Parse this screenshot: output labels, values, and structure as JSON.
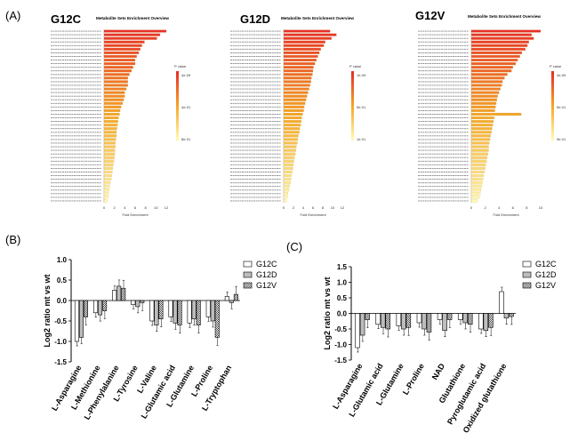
{
  "figure": {
    "panel_a_label": "(A)",
    "panel_b_label": "(B)",
    "panel_c_label": "(C)"
  },
  "colors": {
    "pvalue_high": "#e8302a",
    "pvalue_mid": "#f5a623",
    "pvalue_low": "#fff8b0",
    "bar_g12c": "#ffffff",
    "bar_g12d": "#bdbdbd",
    "bar_g12v": "#d8d8d8"
  },
  "chart_data": [
    {
      "type": "bar",
      "orientation": "horizontal",
      "panel": "A",
      "variant_label": "G12C",
      "title": "Metabolite Sets Enrichment Overview",
      "xlabel": "Fold Enrichment",
      "x_ticks": [
        "0",
        "2",
        "4",
        "6",
        "8",
        "10",
        "12"
      ],
      "legend_title": "P value",
      "legend_ticks": [
        "4e-09",
        "4e-01",
        "8e-01"
      ],
      "xlim": [
        0,
        12
      ],
      "values": [
        12,
        10.8,
        10.2,
        7.8,
        7.3,
        7.0,
        6.7,
        6.3,
        6.0,
        6.0,
        5.6,
        5.3,
        4.9,
        4.6,
        4.6,
        4.6,
        4.3,
        4.0,
        4.0,
        3.8,
        3.6,
        3.3,
        3.1,
        3.0,
        2.8,
        2.7,
        2.6,
        2.5,
        2.4,
        2.4,
        2.3,
        2.2,
        2.2,
        2.1,
        2.1,
        2.0,
        1.9,
        1.8,
        1.7,
        1.6,
        1.5,
        1.4,
        1.2,
        1.1,
        1.0,
        0.9,
        0.8,
        0.6
      ]
    },
    {
      "type": "bar",
      "orientation": "horizontal",
      "panel": "A",
      "variant_label": "G12D",
      "title": "Metabolite Sets Enrichment Overview",
      "xlabel": "Fold Enrichment",
      "x_ticks": [
        "0",
        "2",
        "4",
        "6",
        "8",
        "10",
        "12"
      ],
      "legend_title": "P value",
      "legend_ticks": [
        "1e-09",
        "5e-01",
        "1e-01"
      ],
      "xlim": [
        0,
        12
      ],
      "values": [
        9.5,
        10.8,
        9.8,
        8.5,
        8.2,
        7.6,
        7.3,
        7.0,
        6.7,
        6.4,
        6.1,
        6.0,
        5.9,
        5.7,
        5.6,
        5.4,
        5.2,
        5.0,
        4.8,
        4.6,
        4.4,
        4.2,
        4.1,
        3.9,
        3.7,
        3.6,
        3.5,
        3.3,
        3.2,
        3.0,
        2.9,
        2.8,
        2.6,
        2.5,
        2.4,
        2.2,
        2.1,
        2.0,
        1.9,
        1.8,
        1.6,
        1.5,
        1.4,
        1.2,
        1.1,
        0.9,
        0.8,
        0.6
      ]
    },
    {
      "type": "bar",
      "orientation": "horizontal",
      "panel": "A",
      "variant_label": "G12V",
      "title": "Metabolite Sets Enrichment Overview",
      "xlabel": "Fold Enrichment",
      "x_ticks": [
        "0",
        "2",
        "4",
        "6",
        "8",
        "10"
      ],
      "legend_title": "P value",
      "legend_ticks": [
        "4e-09",
        "5e-01",
        "9e-01"
      ],
      "xlim": [
        0,
        10
      ],
      "values": [
        10.0,
        8.7,
        9.0,
        8.3,
        8.1,
        7.8,
        7.3,
        7.0,
        6.7,
        6.4,
        6.0,
        5.8,
        5.2,
        4.8,
        4.5,
        4.4,
        4.2,
        4.0,
        3.8,
        3.7,
        3.6,
        3.5,
        3.4,
        7.2,
        3.3,
        3.2,
        3.1,
        3.0,
        2.9,
        2.8,
        2.7,
        2.6,
        2.5,
        2.5,
        2.4,
        2.3,
        2.2,
        2.1,
        2.0,
        1.9,
        1.8,
        1.7,
        1.6,
        1.5,
        1.4,
        1.3,
        1.2,
        0.9
      ]
    },
    {
      "type": "bar",
      "panel": "B",
      "ylabel": "Log2 ratio mt vs wt",
      "ylim": [
        -1.5,
        1.0
      ],
      "y_ticks": [
        "1.0",
        "0.5",
        "0.0",
        "-0.5",
        "-1.0",
        "-1.5"
      ],
      "categories": [
        "L-Asparagine",
        "L-Methionine",
        "L-Phenylalanine",
        "L-Tyrosine",
        "L-Valine",
        "L-Glutamic acid",
        "L-Glutamine",
        "L-Proline",
        "L-Tryptophan"
      ],
      "series": [
        {
          "name": "G12C",
          "values": [
            -1.0,
            -0.3,
            0.25,
            -0.1,
            -0.5,
            -0.4,
            -0.55,
            -0.4,
            0.1
          ]
        },
        {
          "name": "G12D",
          "values": [
            -0.9,
            -0.35,
            0.35,
            -0.15,
            -0.6,
            -0.55,
            -0.45,
            -0.5,
            -0.05
          ]
        },
        {
          "name": "G12V",
          "values": [
            -0.4,
            -0.25,
            0.3,
            -0.05,
            -0.45,
            -0.6,
            -0.6,
            -0.9,
            0.15
          ]
        }
      ],
      "legend": [
        "G12C",
        "G12D",
        "G12V"
      ]
    },
    {
      "type": "bar",
      "panel": "C",
      "ylabel": "Log2 ratio mt vs wt",
      "ylim": [
        -1.5,
        1.5
      ],
      "y_ticks": [
        "1.5",
        "1.0",
        "0.5",
        "0.0",
        "-0.5",
        "-1.0",
        "-1.5"
      ],
      "categories": [
        "L-Asparagine",
        "L-Glutamic acid",
        "L-Glutamine",
        "L-Proline",
        "NAD",
        "Glutathione",
        "Pyroglutamic acid",
        "Oxidized glutathione"
      ],
      "series": [
        {
          "name": "G12C",
          "values": [
            -1.1,
            -0.35,
            -0.4,
            -0.3,
            -0.2,
            -0.2,
            -0.5,
            0.7
          ]
        },
        {
          "name": "G12D",
          "values": [
            -0.7,
            -0.45,
            -0.5,
            -0.5,
            -0.55,
            -0.3,
            -0.55,
            -0.15
          ]
        },
        {
          "name": "G12V",
          "values": [
            -0.2,
            -0.5,
            -0.45,
            -0.6,
            -0.2,
            -0.35,
            -0.45,
            -0.1
          ]
        }
      ],
      "legend": [
        "G12C",
        "G12D",
        "G12V"
      ]
    }
  ]
}
